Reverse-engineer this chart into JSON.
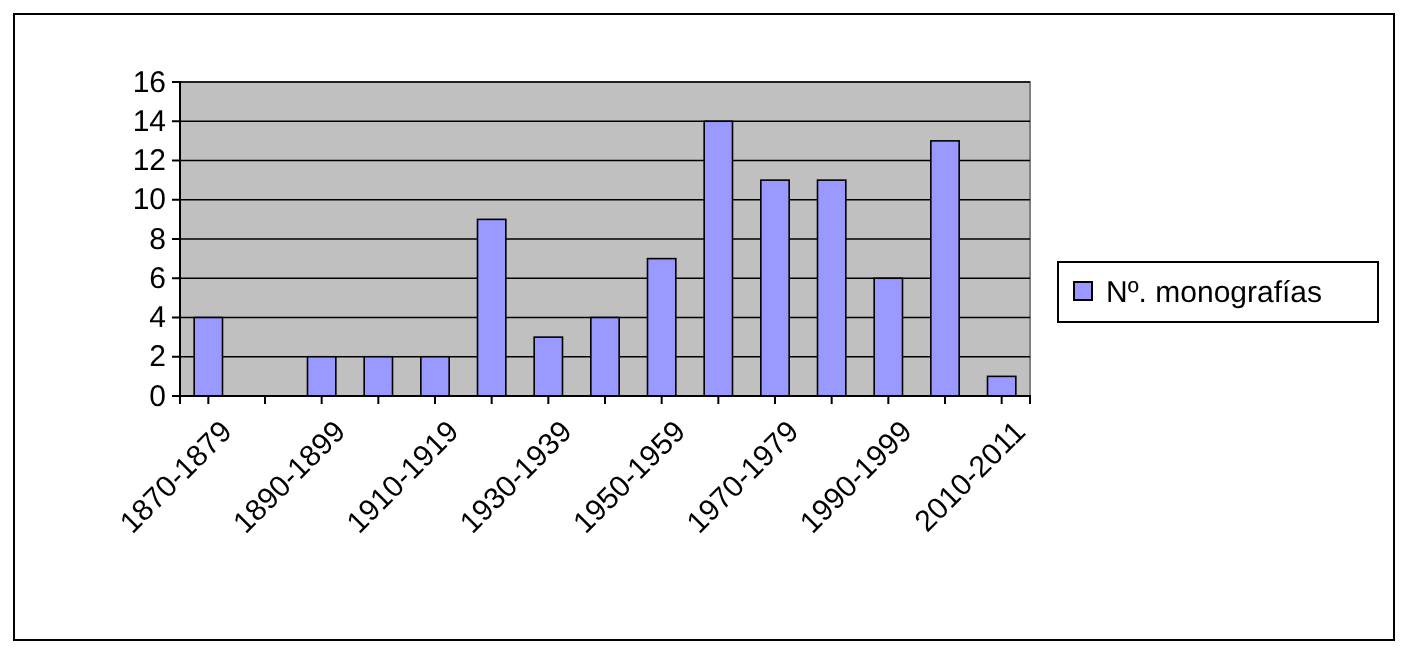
{
  "chart_data": {
    "type": "bar",
    "categories": [
      "1870-1879",
      null,
      "1890-1899",
      null,
      "1910-1919",
      null,
      "1930-1939",
      null,
      "1950-1959",
      null,
      "1970-1979",
      null,
      "1990-1999",
      null,
      "2010-2011"
    ],
    "series": [
      {
        "name": "Nº. monografías",
        "color": "#9999ff",
        "values": [
          4,
          0,
          2,
          2,
          2,
          9,
          3,
          4,
          7,
          14,
          11,
          11,
          6,
          13,
          1
        ]
      }
    ],
    "ylim": [
      0,
      16
    ],
    "yticks": [
      0,
      2,
      4,
      6,
      8,
      10,
      12,
      14,
      16
    ],
    "grid": "y",
    "legend": "right"
  }
}
